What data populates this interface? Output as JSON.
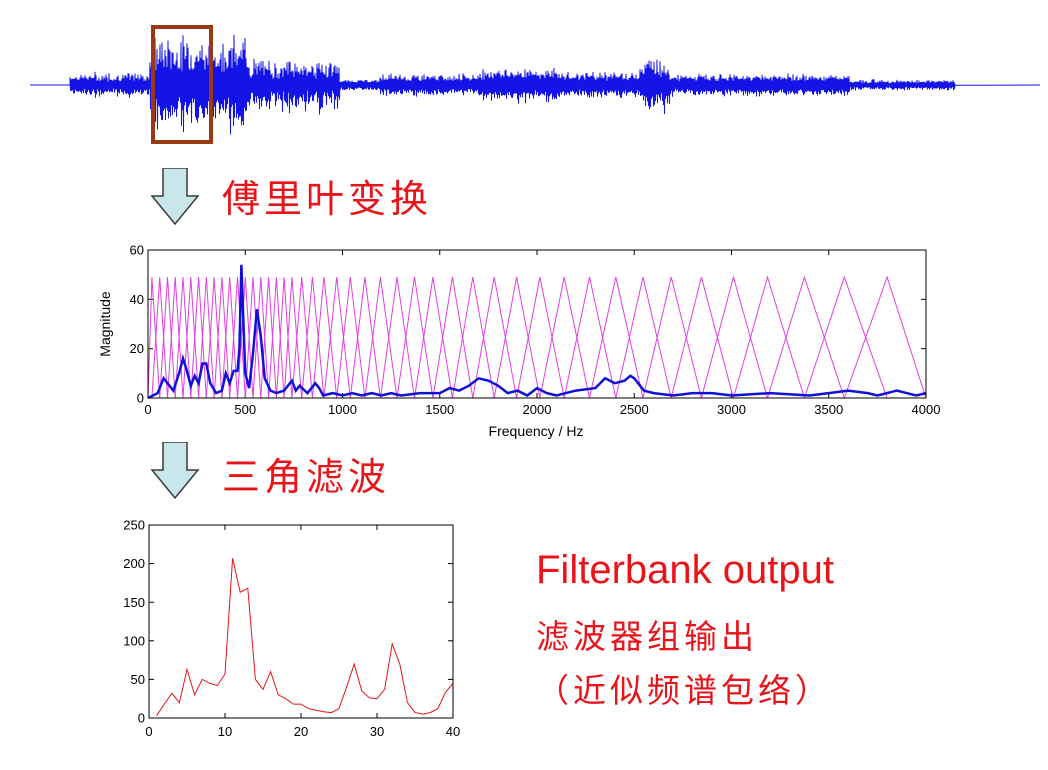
{
  "steps": {
    "fourier_label": "傅里叶变换",
    "triangle_filter_label": "三角滤波"
  },
  "output": {
    "title": "Filterbank output",
    "subtitle": "滤波器组输出",
    "note": "（近似频谱包络）"
  },
  "colors": {
    "waveform": "#1414e6",
    "window_box": "#9b3a12",
    "spectrum": "#1010d8",
    "filters": "#e040e0",
    "filterbank": "#e8141a",
    "arrow_fill": "#c9e7ea",
    "arrow_stroke": "#3a3a3a",
    "text_red": "#e8141a"
  },
  "icons": {
    "arrow": "down-arrow-icon"
  },
  "chart_data": [
    {
      "type": "line",
      "name": "spectrum",
      "xlabel": "Frequency / Hz",
      "ylabel": "Magnitude",
      "xlim": [
        0,
        4000
      ],
      "ylim": [
        0,
        60
      ],
      "xticks": [
        0,
        500,
        1000,
        1500,
        2000,
        2500,
        3000,
        3500,
        4000
      ],
      "yticks": [
        0,
        20,
        40,
        60
      ],
      "series": [
        {
          "x": [
            0,
            50,
            80,
            100,
            130,
            160,
            180,
            200,
            220,
            240,
            260,
            280,
            300,
            320,
            350,
            380,
            400,
            420,
            440,
            460,
            470,
            480,
            490,
            500,
            520,
            540,
            560,
            580,
            600,
            630,
            660,
            700,
            740,
            760,
            780,
            820,
            860,
            880,
            900,
            950,
            1000,
            1050,
            1100,
            1150,
            1200,
            1250,
            1300,
            1400,
            1500,
            1550,
            1600,
            1650,
            1700,
            1750,
            1800,
            1850,
            1900,
            1950,
            2000,
            2050,
            2100,
            2200,
            2300,
            2350,
            2400,
            2450,
            2480,
            2500,
            2520,
            2550,
            2600,
            2700,
            2800,
            2900,
            3000,
            3200,
            3400,
            3500,
            3600,
            3700,
            3750,
            3800,
            3850,
            3900,
            3950,
            4000
          ],
          "y": [
            0,
            2,
            8,
            6,
            3,
            10,
            16,
            11,
            5,
            9,
            6,
            14,
            14,
            6,
            2,
            3,
            10,
            6,
            11,
            11,
            20,
            54,
            32,
            10,
            4,
            18,
            36,
            25,
            8,
            3,
            2,
            3,
            7,
            3,
            5,
            2,
            6,
            4,
            1,
            2,
            1,
            2,
            1,
            2,
            1,
            2,
            1,
            2,
            2,
            4,
            3,
            5,
            8,
            7,
            5,
            2,
            3,
            1,
            4,
            2,
            1,
            3,
            4,
            8,
            6,
            7,
            9,
            8,
            6,
            3,
            2,
            1,
            2,
            2,
            1,
            2,
            1,
            2,
            3,
            2,
            1,
            2,
            3,
            2,
            1,
            2
          ]
        }
      ],
      "filter_centers": [
        20,
        60,
        100,
        140,
        180,
        220,
        260,
        300,
        340,
        380,
        420,
        460,
        500,
        540,
        580,
        620,
        660,
        700,
        740,
        790,
        845,
        905,
        970,
        1040,
        1115,
        1195,
        1280,
        1370,
        1465,
        1565,
        1670,
        1780,
        1895,
        2015,
        2140,
        2270,
        2405,
        2545,
        2690,
        2845,
        3010,
        3185,
        3375,
        3580,
        3800
      ],
      "filter_peak": 49
    },
    {
      "type": "line",
      "name": "filterbank",
      "xlabel": "",
      "ylabel": "",
      "xlim": [
        0,
        40
      ],
      "ylim": [
        0,
        250
      ],
      "xticks": [
        0,
        10,
        20,
        30,
        40
      ],
      "yticks": [
        0,
        50,
        100,
        150,
        200,
        250
      ],
      "series": [
        {
          "x": [
            1,
            2,
            3,
            4,
            5,
            6,
            7,
            8,
            9,
            10,
            11,
            12,
            13,
            14,
            15,
            16,
            17,
            18,
            19,
            20,
            21,
            22,
            23,
            24,
            25,
            26,
            27,
            28,
            29,
            30,
            31,
            32,
            33,
            34,
            35,
            36,
            37,
            38,
            39,
            40
          ],
          "y": [
            3,
            18,
            32,
            20,
            63,
            30,
            50,
            45,
            42,
            57,
            207,
            163,
            168,
            50,
            37,
            60,
            30,
            25,
            18,
            18,
            12,
            10,
            8,
            7,
            12,
            40,
            70,
            35,
            26,
            25,
            37,
            96,
            70,
            20,
            7,
            5,
            7,
            12,
            33,
            45
          ]
        }
      ]
    }
  ]
}
